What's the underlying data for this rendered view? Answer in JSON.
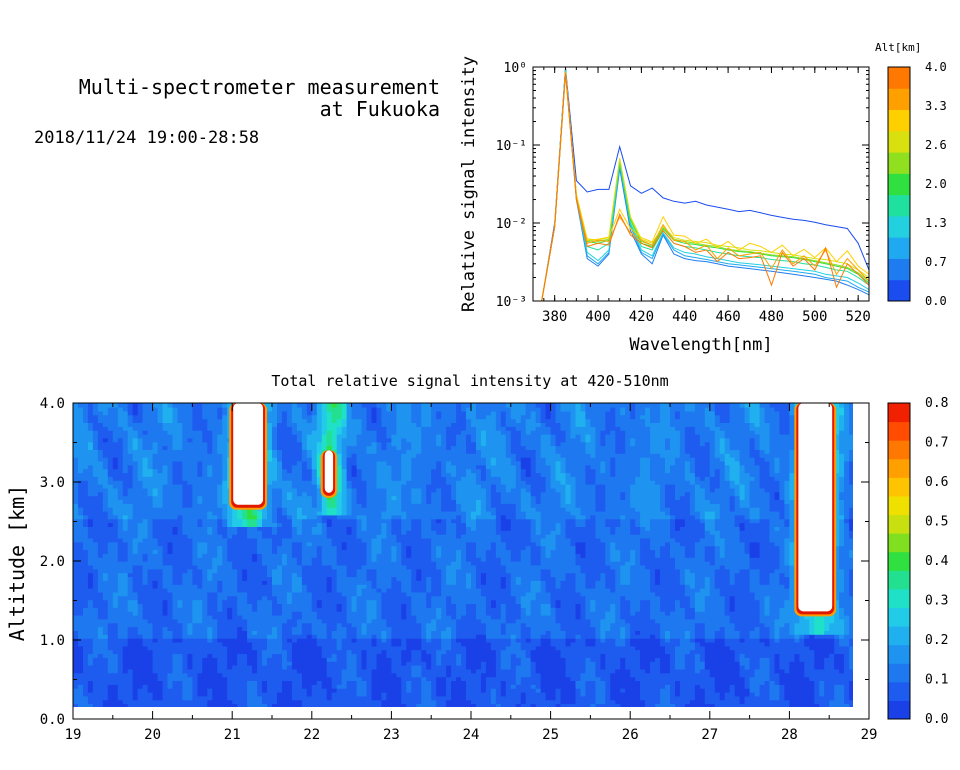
{
  "header": {
    "title_line1": "Multi-spectrometer measurement",
    "title_line2": "at Fukuoka",
    "date_range": "2018/11/24 19:00-28:58"
  },
  "chart_data": [
    {
      "type": "line",
      "title": "",
      "xlabel": "Wavelength[nm]",
      "ylabel": "Relative signal intensity",
      "yscale": "log",
      "xlim": [
        370,
        525
      ],
      "ylim": [
        0.001,
        1
      ],
      "x_ticks": [
        "380",
        "400",
        "420",
        "440",
        "460",
        "480",
        "500",
        "520"
      ],
      "y_ticks": [
        "10⁻³",
        "10⁻²",
        "10⁻¹",
        "10⁰"
      ],
      "x": [
        374,
        380,
        385,
        390,
        395,
        400,
        405,
        410,
        415,
        420,
        425,
        430,
        435,
        440,
        445,
        450,
        455,
        460,
        465,
        470,
        475,
        480,
        485,
        490,
        495,
        500,
        505,
        510,
        515,
        520,
        525
      ],
      "colorbar": {
        "label": "Alt[km]",
        "ticks": [
          "0.0",
          "0.7",
          "1.3",
          "2.0",
          "2.6",
          "3.3",
          "4.0"
        ],
        "colors": [
          "#1a4cf0",
          "#1e7cf0",
          "#20a8f0",
          "#22d0e0",
          "#20e0a0",
          "#30e040",
          "#90e020",
          "#d8e010",
          "#ffd000",
          "#ffa000",
          "#ff7800"
        ]
      },
      "series": [
        {
          "color": "#1a4cf0",
          "values": [
            0.001,
            0.01,
            0.98,
            0.035,
            0.025,
            0.027,
            0.027,
            0.095,
            0.03,
            0.024,
            0.028,
            0.021,
            0.019,
            0.018,
            0.019,
            0.017,
            0.016,
            0.015,
            0.014,
            0.0145,
            0.0135,
            0.0125,
            0.0118,
            0.0112,
            0.0108,
            0.0102,
            0.0095,
            0.009,
            0.0085,
            0.0055,
            0.0025
          ]
        },
        {
          "color": "#1e7cf0",
          "values": [
            0.001,
            0.009,
            0.95,
            0.02,
            0.0035,
            0.0028,
            0.004,
            0.05,
            0.008,
            0.004,
            0.003,
            0.007,
            0.004,
            0.0035,
            0.0033,
            0.0032,
            0.003,
            0.0028,
            0.0027,
            0.0026,
            0.0025,
            0.0024,
            0.0023,
            0.0022,
            0.0021,
            0.002,
            0.0019,
            0.0018,
            0.0016,
            0.0014,
            0.0012
          ]
        },
        {
          "color": "#20a8f0",
          "values": [
            0.001,
            0.009,
            0.93,
            0.02,
            0.0038,
            0.003,
            0.0042,
            0.055,
            0.009,
            0.0042,
            0.0035,
            0.0072,
            0.0045,
            0.0038,
            0.0036,
            0.0034,
            0.0032,
            0.003,
            0.0029,
            0.0028,
            0.0027,
            0.0026,
            0.0025,
            0.0024,
            0.0023,
            0.0022,
            0.002,
            0.0019,
            0.0018,
            0.0015,
            0.0013
          ]
        },
        {
          "color": "#22d0e0",
          "values": [
            0.001,
            0.009,
            0.92,
            0.021,
            0.0042,
            0.0033,
            0.0045,
            0.058,
            0.0095,
            0.0045,
            0.0038,
            0.0075,
            0.0048,
            0.0042,
            0.004,
            0.0037,
            0.0035,
            0.0033,
            0.0031,
            0.003,
            0.0029,
            0.0028,
            0.0027,
            0.0026,
            0.0025,
            0.0024,
            0.0022,
            0.0021,
            0.002,
            0.0017,
            0.0014
          ]
        },
        {
          "color": "#20e0a0",
          "values": [
            0.001,
            0.009,
            0.9,
            0.022,
            0.005,
            0.0045,
            0.0055,
            0.062,
            0.01,
            0.005,
            0.0045,
            0.008,
            0.0055,
            0.005,
            0.0048,
            0.0045,
            0.0042,
            0.004,
            0.0038,
            0.0037,
            0.0036,
            0.0034,
            0.0033,
            0.0032,
            0.003,
            0.0029,
            0.0027,
            0.0025,
            0.0024,
            0.002,
            0.0016
          ]
        },
        {
          "color": "#30e040",
          "values": [
            0.001,
            0.009,
            0.88,
            0.022,
            0.0058,
            0.0055,
            0.006,
            0.065,
            0.011,
            0.0055,
            0.005,
            0.0085,
            0.006,
            0.0055,
            0.0053,
            0.005,
            0.0048,
            0.0045,
            0.0043,
            0.0042,
            0.004,
            0.0038,
            0.0037,
            0.0036,
            0.0034,
            0.0032,
            0.003,
            0.0028,
            0.0026,
            0.0022,
            0.0017
          ]
        },
        {
          "color": "#90e020",
          "values": [
            0.001,
            0.009,
            0.87,
            0.023,
            0.006,
            0.0058,
            0.0062,
            0.066,
            0.0115,
            0.0058,
            0.0052,
            0.0088,
            0.0062,
            0.0058,
            0.0055,
            0.0052,
            0.005,
            0.0046,
            0.0044,
            0.0043,
            0.0041,
            0.0039,
            0.0038,
            0.0037,
            0.0035,
            0.0033,
            0.0031,
            0.0029,
            0.0027,
            0.0023,
            0.0018
          ]
        },
        {
          "color": "#d8e010",
          "values": [
            0.001,
            0.009,
            0.86,
            0.023,
            0.0063,
            0.006,
            0.0065,
            0.068,
            0.012,
            0.0062,
            0.0055,
            0.009,
            0.0065,
            0.006,
            0.0058,
            0.0056,
            0.0052,
            0.005,
            0.0048,
            0.0045,
            0.0044,
            0.0042,
            0.004,
            0.0039,
            0.0037,
            0.0035,
            0.0034,
            0.0032,
            0.003,
            0.0025,
            0.002
          ]
        },
        {
          "color": "#ffd000",
          "values": [
            0.001,
            0.009,
            0.85,
            0.022,
            0.006,
            0.0062,
            0.0066,
            0.015,
            0.0085,
            0.0065,
            0.0057,
            0.012,
            0.007,
            0.0068,
            0.0055,
            0.0062,
            0.0048,
            0.0058,
            0.0045,
            0.0055,
            0.005,
            0.0042,
            0.0052,
            0.0038,
            0.0046,
            0.0036,
            0.0048,
            0.0032,
            0.0044,
            0.0028,
            0.0022
          ]
        },
        {
          "color": "#ffa000",
          "values": [
            0.001,
            0.009,
            0.85,
            0.021,
            0.0055,
            0.006,
            0.0058,
            0.012,
            0.0075,
            0.006,
            0.0052,
            0.0095,
            0.006,
            0.0058,
            0.0045,
            0.0052,
            0.0035,
            0.0048,
            0.0038,
            0.004,
            0.0042,
            0.0026,
            0.0045,
            0.003,
            0.0038,
            0.0028,
            0.0045,
            0.0022,
            0.0035,
            0.0025,
            0.0018
          ]
        },
        {
          "color": "#ff7800",
          "values": [
            0.001,
            0.009,
            0.84,
            0.02,
            0.005,
            0.0055,
            0.0052,
            0.013,
            0.007,
            0.0055,
            0.0048,
            0.008,
            0.0055,
            0.005,
            0.0042,
            0.0045,
            0.0032,
            0.0042,
            0.0035,
            0.0036,
            0.0038,
            0.0016,
            0.0042,
            0.0028,
            0.0035,
            0.0025,
            0.0048,
            0.0015,
            0.003,
            0.0022,
            0.0016
          ]
        }
      ]
    },
    {
      "type": "heatmap",
      "title": "Total relative signal intensity at 420-510nm",
      "xlabel": "",
      "ylabel": "Altitude [km]",
      "xlim": [
        19,
        29
      ],
      "ylim": [
        0,
        4
      ],
      "x_ticks": [
        "19",
        "20",
        "21",
        "22",
        "23",
        "24",
        "25",
        "26",
        "27",
        "28",
        "29"
      ],
      "y_ticks": [
        "0.0",
        "1.0",
        "2.0",
        "3.0",
        "4.0"
      ],
      "colorbar": {
        "ticks": [
          "0.0",
          "0.1",
          "0.2",
          "0.3",
          "0.4",
          "0.5",
          "0.6",
          "0.7",
          "0.8"
        ],
        "colors": [
          "#1a40e8",
          "#1e5cf0",
          "#1e78f0",
          "#1e94f0",
          "#20b0f0",
          "#22cce8",
          "#20e0c8",
          "#22e090",
          "#30e040",
          "#80e020",
          "#c8e010",
          "#f0e000",
          "#ffc400",
          "#ffa000",
          "#ff7800",
          "#ff4c00",
          "#f02000"
        ]
      },
      "features": [
        {
          "kind": "cloud",
          "x_start": 21.0,
          "x_end": 21.4,
          "alt_bottom": 2.7,
          "alt_top": 4.0
        },
        {
          "kind": "cloud",
          "x_start": 22.15,
          "x_end": 22.28,
          "alt_bottom": 2.85,
          "alt_top": 3.4
        },
        {
          "kind": "cloud",
          "x_start": 28.1,
          "x_end": 28.55,
          "alt_bottom": 1.35,
          "alt_top": 4.0
        }
      ]
    }
  ]
}
